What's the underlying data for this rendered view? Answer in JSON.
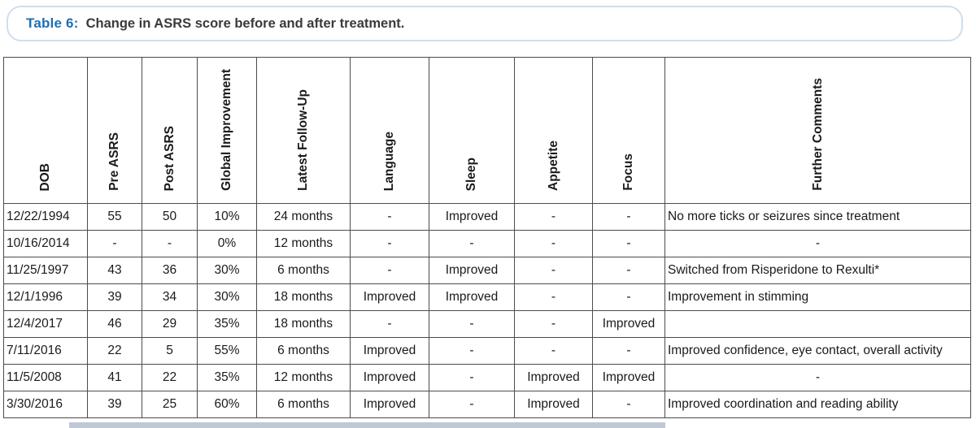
{
  "title": {
    "label": "Table 6:",
    "text": "Change in ASRS score before and after treatment."
  },
  "table": {
    "columns": [
      {
        "key": "dob",
        "label": "DOB"
      },
      {
        "key": "pre-asrs",
        "label": "Pre ASRS"
      },
      {
        "key": "post-asrs",
        "label": "Post ASRS"
      },
      {
        "key": "global-improvement",
        "label": "Global Improvement"
      },
      {
        "key": "latest-follow-up",
        "label": "Latest Follow-Up"
      },
      {
        "key": "language",
        "label": "Language"
      },
      {
        "key": "sleep",
        "label": "Sleep"
      },
      {
        "key": "appetite",
        "label": "Appetite"
      },
      {
        "key": "focus",
        "label": "Focus"
      },
      {
        "key": "further-comments",
        "label": "Further Comments"
      }
    ],
    "rows": [
      [
        "12/22/1994",
        "55",
        "50",
        "10%",
        "24 months",
        "-",
        "Improved",
        "-",
        "-",
        "No more ticks or seizures since treatment"
      ],
      [
        "10/16/2014",
        "-",
        "-",
        "0%",
        "12 months",
        "-",
        "-",
        "-",
        "-",
        "-"
      ],
      [
        "11/25/1997",
        "43",
        "36",
        "30%",
        "6 months",
        "-",
        "Improved",
        "-",
        "-",
        "Switched from Risperidone to Rexulti*"
      ],
      [
        "12/1/1996",
        "39",
        "34",
        "30%",
        "18 months",
        "Improved",
        "Improved",
        "-",
        "-",
        "Improvement in stimming"
      ],
      [
        "12/4/2017",
        "46",
        "29",
        "35%",
        "18 months",
        "-",
        "-",
        "-",
        "Improved",
        ""
      ],
      [
        "7/11/2016",
        "22",
        "5",
        "55%",
        "6 months",
        "Improved",
        "-",
        "-",
        "-",
        "Improved confidence, eye contact, overall activity"
      ],
      [
        "11/5/2008",
        "41",
        "22",
        "35%",
        "12 months",
        "Improved",
        "-",
        "Improved",
        "Improved",
        "-"
      ],
      [
        "3/30/2016",
        "39",
        "25",
        "60%",
        "6 months",
        "Improved",
        "-",
        "Improved",
        "-",
        "Improved coordination and reading ability"
      ]
    ]
  },
  "colors": {
    "title_accent": "#1e6fb5",
    "title_text": "#3a3a3a",
    "table_border": "#4c4c4c"
  }
}
